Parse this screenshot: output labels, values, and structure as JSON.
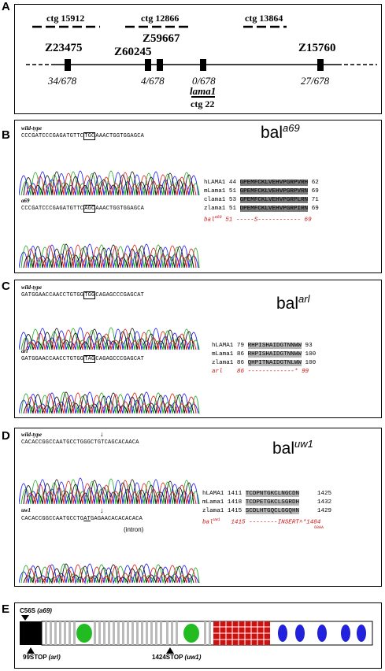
{
  "panels": {
    "A": "A",
    "B": "B",
    "C": "C",
    "D": "D",
    "E": "E"
  },
  "map": {
    "contigs": [
      "ctg 15912",
      "ctg 12866",
      "ctg 13864",
      "ctg 22"
    ],
    "markers": [
      "Z23475",
      "Z60245",
      "Z59667",
      "Z15760"
    ],
    "gene": "lama1",
    "ratios": [
      "34/678",
      "4/678",
      "0/678",
      "27/678"
    ]
  },
  "b": {
    "gene": "bal",
    "allele": "a69",
    "wt_label": "wild-type",
    "mut_label": "a69",
    "wt_seq": "CCCGATCCCGAGATGTTC",
    "wt_box": "TGC",
    "wt_tail": "AAACTGGTGGAGCA",
    "mut_seq": "CCCGATCCCGAGATGTTC",
    "mut_box": "AGC",
    "mut_tail": "AAACTGGTGGAGCA",
    "rows": [
      {
        "name": "hLAMA1",
        "start": "44",
        "seq": "GPEMFCKLVEHVPGRPVRH",
        "end": "62"
      },
      {
        "name": "mLama1",
        "start": "51",
        "seq": "GPEMFCKLVEHVPGRPVRN",
        "end": "69"
      },
      {
        "name": "clama1",
        "start": "53",
        "seq": "GPEMFCKLVEHVPGRPLRN",
        "end": "71"
      },
      {
        "name": "zlama1",
        "start": "51",
        "seq": "DPEMFCKLVEHVPGRPIRN",
        "end": "69"
      }
    ],
    "mut_row": {
      "name": "bal",
      "sup": "a69",
      "start": "51",
      "seq": "-----S------------",
      "end": "69"
    }
  },
  "c": {
    "gene": "bal",
    "allele": "arl",
    "wt_label": "wild-type",
    "mut_label": "arl",
    "wt_seq": "GATGGAACCAACCTGTGG",
    "wt_box": "TGG",
    "wt_tail": "CAGAGCCCGAGCAT",
    "mut_seq": "GATGGAACCAACCTGTGG",
    "mut_box": "TAG",
    "mut_tail": "CAGAGCCCGAGCAT",
    "rows": [
      {
        "name": "hLAMA1",
        "start": "79",
        "seq": "RHPISHAIDGTNNWW",
        "end": "93"
      },
      {
        "name": "mLama1",
        "start": "86",
        "seq": "RHPISHAIDGTNNWW",
        "end": "100"
      },
      {
        "name": "zlama1",
        "start": "86",
        "seq": "QHPITNAIDGTNLWW",
        "end": "100"
      }
    ],
    "mut_row": {
      "name": "arl",
      "start": "86",
      "seq": "-------------*",
      "end": "99"
    }
  },
  "d": {
    "gene": "bal",
    "allele": "uw1",
    "wt_label": "wild-type",
    "mut_label": "uw1",
    "wt_seq": "CACACCGGCCAATGCCTG",
    "wt_tail": "GGCTGTCAGCACAACA",
    "mut_seq": "CACACCGGCCAATGCCTG",
    "mut_box": "AT",
    "mut_tail": "GAGAACACACACACA",
    "intron": "(intron)",
    "rows": [
      {
        "name": "hLAMA1",
        "start": "1411",
        "seq": "TCDPNTGKCLNGCDN",
        "end": "1425"
      },
      {
        "name": "mLama1",
        "start": "1418",
        "seq": "TCDPETGKCLSGRDH",
        "end": "1432"
      },
      {
        "name": "zlama1",
        "start": "1415",
        "seq": "SCDLHTGQCLGGQHN",
        "end": "1429"
      }
    ],
    "mut_row": {
      "name": "bal",
      "sup": "uw1",
      "start": "1415",
      "seq": "--------INSERT",
      "end": "1484",
      "star": "*",
      "insert_note": "60AA"
    }
  },
  "e": {
    "top_label": "C56S",
    "top_allele": "(a69)",
    "bot1": "99STOP",
    "bot1_allele": "(arl)",
    "bot2": "1424STOP",
    "bot2_allele": "(uw1)"
  },
  "colors": {
    "trace_a": "#1a1aff",
    "trace_c": "#22aa22",
    "trace_g": "#111111",
    "trace_t": "#dd2222",
    "egf_green": "#22bb22",
    "lg_blue": "#2222dd",
    "coil_red": "#cc1111"
  }
}
